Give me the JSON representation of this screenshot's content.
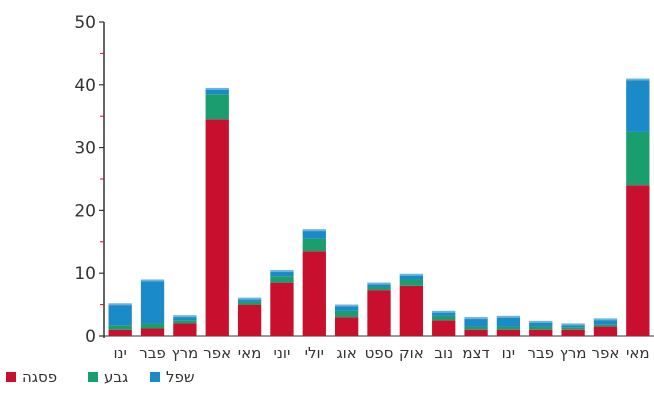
{
  "chart_data": {
    "type": "bar",
    "stacked": true,
    "categories": [
      "ינו",
      "פבר",
      "מרץ",
      "אפר",
      "מאי",
      "יוני",
      "יולי",
      "אוג",
      "ספט",
      "אוק",
      "נוב",
      "דצמ",
      "ינו",
      "פבר",
      "מרץ",
      "אפר",
      "מאי"
    ],
    "series": [
      {
        "name": "פסגה",
        "color": "#c8102e",
        "values": [
          1.0,
          1.2,
          2.0,
          34.5,
          5.0,
          8.5,
          13.5,
          3.0,
          7.3,
          8.0,
          2.5,
          1.0,
          1.0,
          1.0,
          1.0,
          1.5,
          24.0
        ]
      },
      {
        "name": "גבע",
        "color": "#1a9e6e",
        "values": [
          0.7,
          0.8,
          0.5,
          4.0,
          0.5,
          1.0,
          2.0,
          1.0,
          0.5,
          1.0,
          0.7,
          0.5,
          0.5,
          0.5,
          0.4,
          0.3,
          8.5
        ]
      },
      {
        "name": "שפל",
        "color": "#1b8ac8",
        "values": [
          3.5,
          7.0,
          0.8,
          1.0,
          0.6,
          1.0,
          1.5,
          1.0,
          0.7,
          0.9,
          0.8,
          1.5,
          1.7,
          0.9,
          0.6,
          1.0,
          8.5
        ]
      }
    ],
    "ylim": [
      0,
      50
    ],
    "yticks": [
      0,
      10,
      20,
      30,
      40,
      50
    ],
    "grid": false,
    "legend_position": "bottom-left"
  }
}
